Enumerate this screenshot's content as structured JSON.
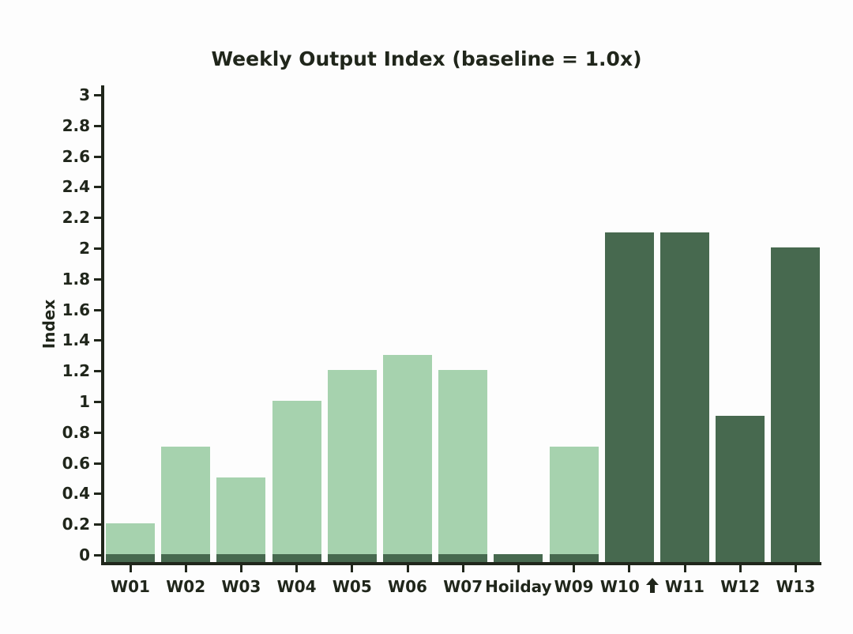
{
  "page": {
    "background": "#fdfdfd"
  },
  "chart": {
    "title": "Weekly Output Index (baseline = 1.0x)",
    "ylabel": "Index"
  },
  "chart_data": {
    "type": "bar",
    "title": "Weekly Output Index (baseline = 1.0x)",
    "xlabel": "",
    "ylabel": "Index",
    "ylim": [
      0,
      3
    ],
    "ytick_step": 0.2,
    "ytick_labels": [
      "0",
      "0.2",
      "0.4",
      "0.6",
      "0.8",
      "1",
      "1.2",
      "1.4",
      "1.6",
      "1.8",
      "2",
      "2.2",
      "2.4",
      "2.6",
      "2.8",
      "3"
    ],
    "yticks": [
      0,
      0.2,
      0.4,
      0.6,
      0.8,
      1.0,
      1.2,
      1.4,
      1.6,
      1.8,
      2.0,
      2.2,
      2.4,
      2.6,
      2.8,
      3.0
    ],
    "grid": false,
    "legend": null,
    "categories": [
      "W01",
      "W02",
      "W03",
      "W04",
      "W05",
      "W06",
      "W07",
      "Hoilday",
      "W09",
      "W10",
      "W11",
      "W12",
      "W13"
    ],
    "values": [
      0.2,
      0.7,
      0.5,
      1.0,
      1.2,
      1.3,
      1.2,
      0.0,
      0.7,
      2.1,
      2.1,
      0.9,
      2.0
    ],
    "bar_palette": [
      "light",
      "light",
      "light",
      "light",
      "light",
      "light",
      "light",
      "dark",
      "light",
      "dark",
      "dark",
      "dark",
      "dark"
    ],
    "label_has_arrow": [
      false,
      false,
      false,
      false,
      false,
      false,
      false,
      false,
      false,
      true,
      false,
      false,
      false
    ],
    "annotations": [
      {
        "category": "W10",
        "symbol": "bold-up-arrow",
        "position": "after-x-label"
      }
    ],
    "style_notes": {
      "base_strip": "every bar has a dark green base segment sitting below the zero line on the axis",
      "colors": {
        "bar_light": "#a6d2ae",
        "bar_dark": "#47694f",
        "axis": "#20261b",
        "text": "#20261b",
        "background": "#fdfdfd"
      }
    }
  }
}
